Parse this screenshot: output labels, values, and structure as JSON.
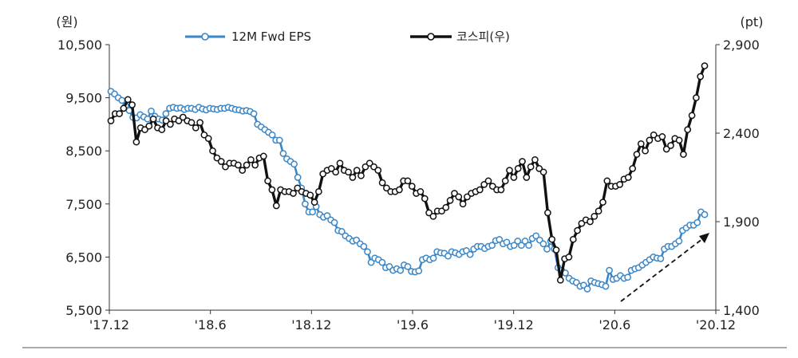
{
  "chart_data": {
    "type": "line",
    "title": "",
    "left_axis": {
      "unit": "(원)",
      "range": [
        5500,
        10500
      ],
      "ticks": [
        "10,500",
        "9,500",
        "8,500",
        "7,500",
        "6,500",
        "5,500"
      ]
    },
    "right_axis": {
      "unit": "(pt)",
      "range": [
        1400,
        2900
      ],
      "ticks": [
        "2,900",
        "2,400",
        "1,900",
        "1,400"
      ]
    },
    "x_axis": {
      "ticks": [
        "'17.12",
        "'18.6",
        "'18.12",
        "'19.6",
        "'19.12",
        "'20.6",
        "'20.12"
      ]
    },
    "legend": {
      "position": "top",
      "entries": [
        "12M Fwd EPS",
        "코스피(우)"
      ]
    },
    "colors": {
      "eps": "#3a86c6",
      "kospi": "#111111"
    },
    "series": [
      {
        "name": "12M Fwd EPS",
        "axis": "left",
        "values": [
          9620,
          9570,
          9500,
          9450,
          9350,
          9260,
          9130,
          9120,
          9180,
          9140,
          9100,
          9250,
          9150,
          9100,
          9080,
          9200,
          9300,
          9320,
          9300,
          9310,
          9280,
          9300,
          9300,
          9280,
          9320,
          9290,
          9270,
          9300,
          9290,
          9280,
          9300,
          9300,
          9320,
          9300,
          9280,
          9270,
          9250,
          9260,
          9240,
          9200,
          9000,
          8950,
          8900,
          8850,
          8800,
          8700,
          8700,
          8450,
          8350,
          8300,
          8250,
          8000,
          7800,
          7500,
          7350,
          7350,
          7450,
          7300,
          7250,
          7280,
          7200,
          7150,
          7000,
          6980,
          6900,
          6850,
          6800,
          6820,
          6750,
          6700,
          6600,
          6400,
          6480,
          6450,
          6400,
          6300,
          6320,
          6250,
          6280,
          6250,
          6350,
          6320,
          6230,
          6220,
          6240,
          6450,
          6480,
          6450,
          6480,
          6600,
          6580,
          6570,
          6520,
          6600,
          6580,
          6550,
          6600,
          6620,
          6550,
          6650,
          6700,
          6700,
          6660,
          6700,
          6720,
          6810,
          6830,
          6750,
          6780,
          6700,
          6720,
          6800,
          6720,
          6800,
          6720,
          6850,
          6900,
          6820,
          6750,
          6650,
          6800,
          6650,
          6300,
          6250,
          6200,
          6100,
          6050,
          6020,
          5950,
          5970,
          5900,
          6050,
          6020,
          6000,
          5980,
          5950,
          6250,
          6080,
          6100,
          6150,
          6100,
          6120,
          6250,
          6280,
          6300,
          6350,
          6400,
          6450,
          6500,
          6480,
          6470,
          6650,
          6700,
          6700,
          6750,
          6800,
          7000,
          7050,
          7100,
          7100,
          7150,
          7350,
          7300
        ]
      },
      {
        "name": "코스피(우)",
        "axis": "right",
        "values": [
          2470,
          2510,
          2510,
          2540,
          2590,
          2560,
          2350,
          2430,
          2420,
          2440,
          2480,
          2430,
          2420,
          2470,
          2450,
          2480,
          2470,
          2490,
          2470,
          2460,
          2430,
          2460,
          2390,
          2370,
          2300,
          2260,
          2240,
          2210,
          2230,
          2230,
          2220,
          2190,
          2220,
          2250,
          2220,
          2260,
          2270,
          2130,
          2080,
          1990,
          2080,
          2070,
          2070,
          2060,
          2090,
          2070,
          2060,
          2050,
          2010,
          2070,
          2170,
          2190,
          2200,
          2180,
          2230,
          2190,
          2180,
          2150,
          2190,
          2160,
          2210,
          2230,
          2210,
          2190,
          2120,
          2090,
          2070,
          2070,
          2080,
          2130,
          2130,
          2100,
          2060,
          2070,
          2030,
          1950,
          1930,
          1960,
          1960,
          1980,
          2020,
          2060,
          2040,
          2000,
          2040,
          2060,
          2070,
          2080,
          2110,
          2130,
          2100,
          2080,
          2080,
          2130,
          2190,
          2150,
          2200,
          2240,
          2150,
          2210,
          2250,
          2200,
          2180,
          1950,
          1800,
          1740,
          1570,
          1690,
          1700,
          1800,
          1850,
          1890,
          1910,
          1900,
          1930,
          1960,
          2010,
          2130,
          2100,
          2100,
          2110,
          2140,
          2150,
          2200,
          2280,
          2340,
          2300,
          2360,
          2390,
          2370,
          2380,
          2310,
          2330,
          2370,
          2360,
          2280,
          2420,
          2500,
          2600,
          2720,
          2780
        ]
      }
    ]
  }
}
